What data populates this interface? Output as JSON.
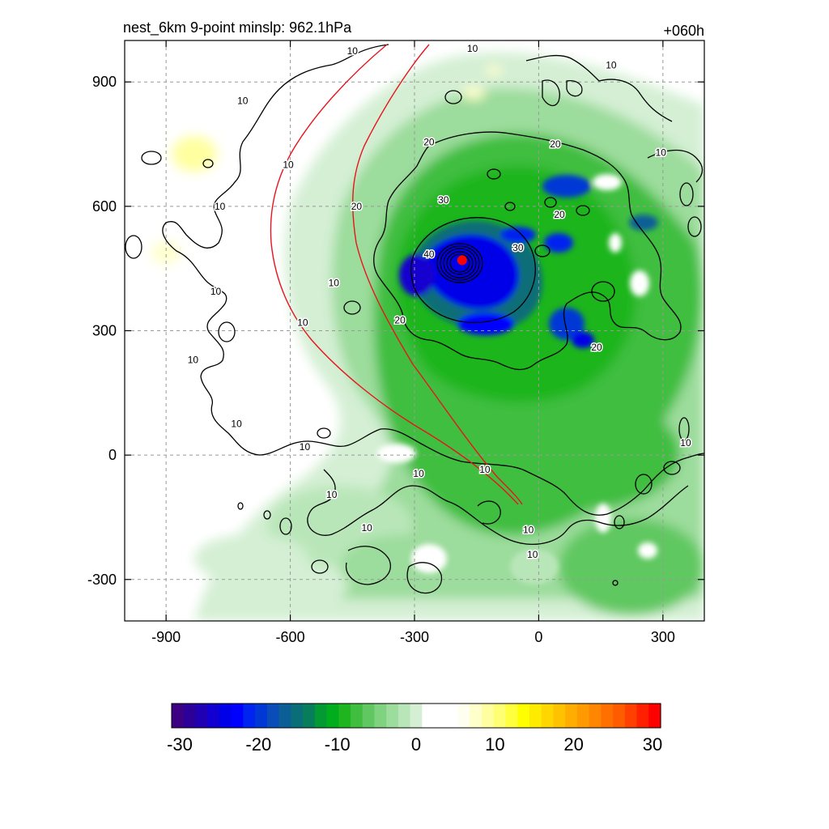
{
  "title_left": "nest_6km  9-point minslp: 962.1hPa",
  "title_right": "+060h",
  "chart_data": [
    {
      "type": "contour-map",
      "xlim": [
        -1000,
        400
      ],
      "ylim": [
        -400,
        1000
      ],
      "x_ticks": [
        -900,
        -600,
        -300,
        0,
        300
      ],
      "y_ticks": [
        -300,
        0,
        300,
        600,
        900
      ],
      "x_tick_labels": [
        "-900",
        "-600",
        "-300",
        "0",
        "300"
      ],
      "y_tick_labels": [
        "-300",
        "0",
        "300",
        "600",
        "900"
      ],
      "grid": true,
      "grid_style": "dashed",
      "storm_center": {
        "x": -185,
        "y": 470,
        "color": "#ff0000"
      },
      "contour_levels": [
        10,
        20,
        30,
        40
      ],
      "contour_labels": [
        {
          "text": "10",
          "x": -450,
          "y": 975
        },
        {
          "text": "10",
          "x": -715,
          "y": 855
        },
        {
          "text": "10",
          "x": -605,
          "y": 700
        },
        {
          "text": "10",
          "x": -770,
          "y": 600
        },
        {
          "text": "10",
          "x": -780,
          "y": 395
        },
        {
          "text": "10",
          "x": -570,
          "y": 320
        },
        {
          "text": "10",
          "x": -835,
          "y": 230
        },
        {
          "text": "10",
          "x": -730,
          "y": 75
        },
        {
          "text": "10",
          "x": -565,
          "y": 20
        },
        {
          "text": "10",
          "x": -500,
          "y": -95
        },
        {
          "text": "10",
          "x": -415,
          "y": -175
        },
        {
          "text": "10",
          "x": -290,
          "y": -45
        },
        {
          "text": "10",
          "x": -130,
          "y": -35
        },
        {
          "text": "10",
          "x": -25,
          "y": -180
        },
        {
          "text": "10",
          "x": -15,
          "y": -240
        },
        {
          "text": "10",
          "x": -160,
          "y": 980
        },
        {
          "text": "10",
          "x": 175,
          "y": 940
        },
        {
          "text": "10",
          "x": 295,
          "y": 730
        },
        {
          "text": "10",
          "x": 355,
          "y": 30
        },
        {
          "text": "10",
          "x": -495,
          "y": 415
        },
        {
          "text": "20",
          "x": -265,
          "y": 755
        },
        {
          "text": "20",
          "x": 40,
          "y": 750
        },
        {
          "text": "20",
          "x": -440,
          "y": 600
        },
        {
          "text": "20",
          "x": 50,
          "y": 580
        },
        {
          "text": "20",
          "x": -335,
          "y": 325
        },
        {
          "text": "20",
          "x": 140,
          "y": 260
        },
        {
          "text": "30",
          "x": -230,
          "y": 615
        },
        {
          "text": "30",
          "x": -50,
          "y": 500
        },
        {
          "text": "40",
          "x": -265,
          "y": 485
        }
      ],
      "colorbar": {
        "min": -30,
        "max": 30,
        "tick_labels": [
          "-30",
          "-20",
          "-10",
          "0",
          "10",
          "20",
          "30"
        ],
        "colors": [
          "#3d0083",
          "#2c0098",
          "#1f00b3",
          "#1200d0",
          "#0000e8",
          "#0000ff",
          "#0024f0",
          "#0038d6",
          "#0a4cb8",
          "#0c5f96",
          "#0a6e78",
          "#077d5c",
          "#039a34",
          "#00ad1c",
          "#1fb51f",
          "#40be40",
          "#61c861",
          "#7fd27f",
          "#9cdc9c",
          "#b9e6b9",
          "#d4efd4",
          "#ffffff",
          "#ffffff",
          "#ffffff",
          "#fffff0",
          "#ffffcc",
          "#ffffa0",
          "#ffff73",
          "#ffff3d",
          "#ffff00",
          "#ffeb00",
          "#ffd600",
          "#ffc200",
          "#ffad00",
          "#ff9a00",
          "#ff8600",
          "#ff7000",
          "#ff5c00",
          "#ff4000",
          "#ff2000",
          "#ff0000"
        ]
      }
    }
  ]
}
